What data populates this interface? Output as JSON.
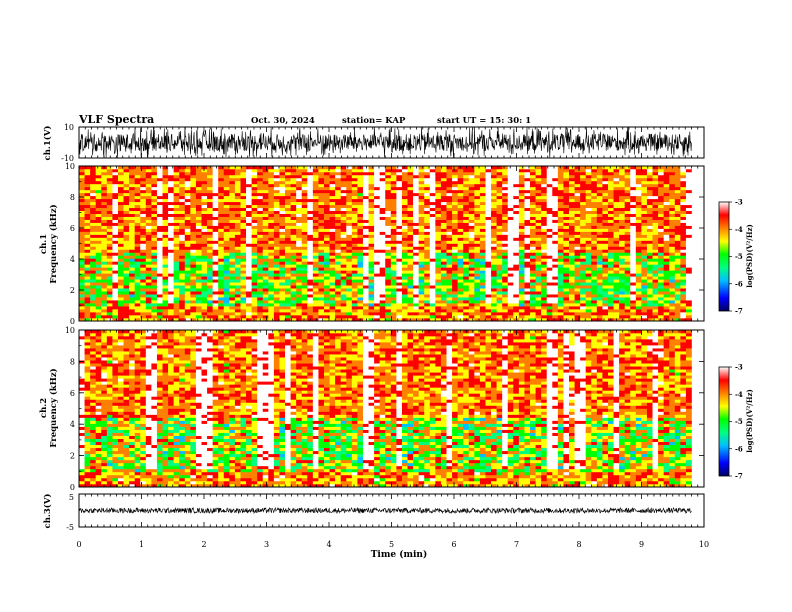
{
  "header": {
    "title": "VLF Spectra",
    "date": "Oct. 30, 2024",
    "station": "station= KAP",
    "start": "start  UT  =   15: 30: 1"
  },
  "chart_data": [
    {
      "type": "line",
      "panel": "ch1-waveform",
      "ylabel": "ch.1(V)",
      "ylim": [
        -10,
        10
      ],
      "ytick_labels": [
        "10",
        "-10"
      ],
      "xlim": [
        0,
        10
      ]
    },
    {
      "type": "heatmap",
      "panel": "ch1-spectrogram",
      "ylabel_line1": "ch.1",
      "ylabel_line2": "Frequency  (kHz)",
      "ylim": [
        0,
        10
      ],
      "ytick_labels": [
        "0",
        "2",
        "4",
        "6",
        "8",
        "10"
      ],
      "xlim": [
        0,
        10
      ],
      "data_extent_min": 9.8,
      "colorbar": {
        "range": [
          -7,
          -3
        ],
        "tick_labels": [
          "-3",
          "-4",
          "-5",
          "-6",
          "-7"
        ],
        "label": "log(PSD)(V²/Hz)"
      }
    },
    {
      "type": "heatmap",
      "panel": "ch2-spectrogram",
      "ylabel_line1": "ch.2",
      "ylabel_line2": "Frequency  (kHz)",
      "ylim": [
        0,
        10
      ],
      "ytick_labels": [
        "0",
        "2",
        "4",
        "6",
        "8",
        "10"
      ],
      "xlim": [
        0,
        10
      ],
      "data_extent_min": 9.8,
      "colorbar": {
        "range": [
          -7,
          -3
        ],
        "tick_labels": [
          "-3",
          "-4",
          "-5",
          "-6",
          "-7"
        ],
        "label": "log(PSD)(V²/Hz)"
      }
    },
    {
      "type": "line",
      "panel": "ch3-waveform",
      "ylabel": "ch.3(V)",
      "ylim": [
        -5,
        5
      ],
      "ytick_labels": [
        "5",
        "-5"
      ],
      "xlim": [
        0,
        10
      ]
    }
  ],
  "xaxis": {
    "label": "Time  (min)",
    "tick_labels": [
      "0",
      "1",
      "2",
      "3",
      "4",
      "5",
      "6",
      "7",
      "8",
      "9",
      "10"
    ]
  },
  "colors": {
    "colormap": [
      "#000080",
      "#0000ff",
      "#00bfff",
      "#00ff80",
      "#00ff00",
      "#ffff00",
      "#ff8000",
      "#ff0000",
      "#ffffff"
    ]
  }
}
